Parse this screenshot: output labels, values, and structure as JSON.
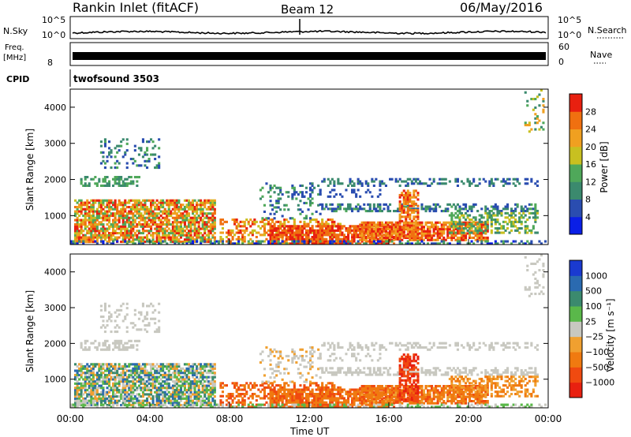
{
  "header": {
    "title": "Rankin Inlet (fitACF)",
    "beam": "Beam 12",
    "date": "06/May/2016"
  },
  "panels": {
    "nsky": {
      "left_label": "N.Sky",
      "right_label": "N.Search",
      "ticks_left": [
        "10^5",
        "10^0"
      ],
      "ticks_right": [
        "10^5",
        "10^0"
      ]
    },
    "freq": {
      "left_label_1": "Freq.",
      "left_label_2": "[MHz]",
      "right_label": "Nave",
      "ticks_left": [
        "8"
      ],
      "ticks_right": [
        "60",
        "0"
      ]
    },
    "cpid": {
      "label": "CPID",
      "value": "twofsound 3503"
    }
  },
  "colors": {
    "power_scale": [
      "#0a1fe6",
      "#2a4db0",
      "#3b8a6e",
      "#4fa85a",
      "#c8c020",
      "#f0a020",
      "#f07010",
      "#e82010"
    ],
    "velocity_scale": [
      "#e82010",
      "#f04a10",
      "#f07a10",
      "#f0a030",
      "#c8c8c0",
      "#5ab84a",
      "#3b8a6e",
      "#2a6ab0",
      "#1a3ad0"
    ]
  },
  "chart_data": [
    {
      "type": "heatmap",
      "name_id": "power",
      "ylabel": "Slant Range [km]",
      "yticks": [
        1000,
        2000,
        3000,
        4000
      ],
      "ylim": [
        200,
        4500
      ],
      "xlim": [
        0,
        24
      ],
      "colorbar_label": "Power [dB]",
      "colorbar_ticks": [
        "4",
        "8",
        "12",
        "16",
        "20",
        "24",
        "28"
      ]
    },
    {
      "type": "heatmap",
      "name_id": "velocity",
      "ylabel": "Slant Range [km]",
      "yticks": [
        1000,
        2000,
        3000,
        4000
      ],
      "ylim": [
        200,
        4500
      ],
      "xlim": [
        0,
        24
      ],
      "xticks": [
        "00:00",
        "04:00",
        "08:00",
        "12:00",
        "16:00",
        "20:00",
        "00:00"
      ],
      "xlabel": "Time UT",
      "colorbar_label": "Velocity [m s⁻¹]",
      "colorbar_ticks": [
        "1000",
        "500",
        "100",
        "25",
        "−25",
        "−100",
        "−500",
        "−1000"
      ]
    }
  ]
}
